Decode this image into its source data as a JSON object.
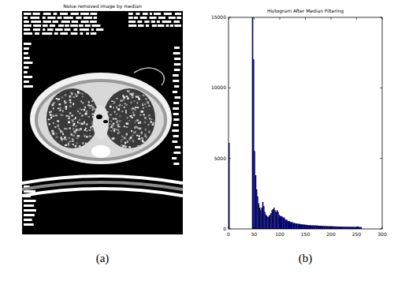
{
  "panel_labels": [
    "(a)",
    "(b)"
  ],
  "image": {
    "title": "Noise removed image by median"
  },
  "chart_data": {
    "type": "histogram",
    "title": "Histogram After Median Filtering",
    "bins": [
      0,
      2,
      46,
      48,
      50,
      52,
      54,
      56,
      58,
      60,
      62,
      64,
      66,
      68,
      70,
      72,
      74,
      76,
      78,
      80,
      82,
      84,
      86,
      88,
      90,
      92,
      94,
      96,
      98,
      100,
      105,
      110,
      115,
      120,
      125,
      130,
      135,
      140,
      145,
      150,
      155,
      160,
      165,
      170,
      175,
      180,
      185,
      190,
      195,
      200,
      205,
      210,
      215,
      220,
      225,
      230,
      235,
      240,
      245,
      250,
      255,
      260
    ],
    "counts": [
      6100,
      0,
      15000,
      12000,
      5500,
      3800,
      2800,
      2300,
      1800,
      1500,
      1300,
      1500,
      1900,
      1600,
      1200,
      1000,
      900,
      800,
      900,
      1000,
      1100,
      1300,
      1400,
      1500,
      1300,
      1200,
      1300,
      1200,
      1000,
      900,
      800,
      650,
      550,
      480,
      420,
      380,
      350,
      320,
      300,
      280,
      260,
      250,
      240,
      230,
      220,
      210,
      200,
      190,
      180,
      175,
      170,
      165,
      160,
      155,
      150,
      150,
      145,
      140,
      140,
      160,
      120
    ],
    "color": "#00007f",
    "xlim": [
      0,
      300
    ],
    "xticks": [
      0,
      50,
      100,
      150,
      200,
      250,
      300
    ],
    "ylim": [
      0,
      15000
    ],
    "yticks": [
      0,
      5000,
      10000,
      15000
    ]
  }
}
